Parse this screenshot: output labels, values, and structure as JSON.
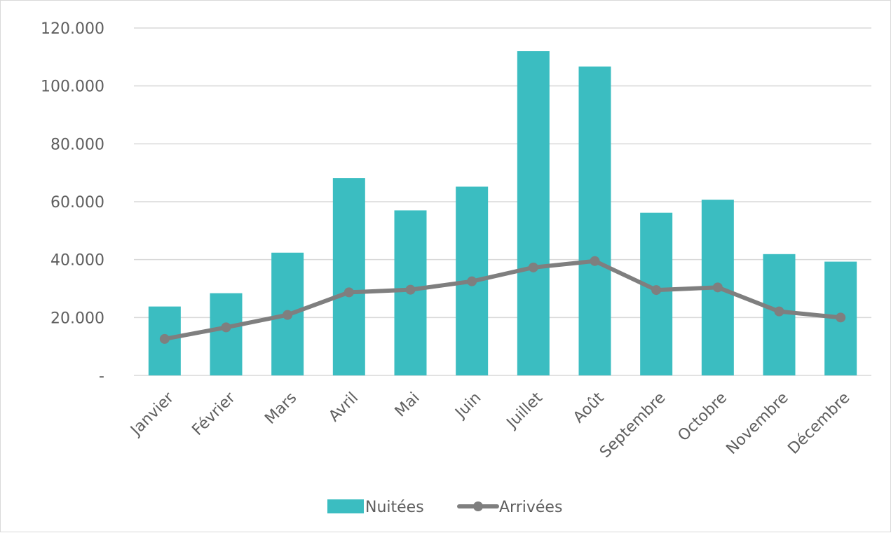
{
  "chart_data": {
    "type": "bar",
    "categories": [
      "Janvier",
      "Février",
      "Mars",
      "Avril",
      "Mai",
      "Juin",
      "Juillet",
      "Août",
      "Septembre",
      "Octobre",
      "Novembre",
      "Décembre"
    ],
    "series": [
      {
        "name": "Nuitées",
        "type": "bar",
        "color": "#3bbdc1",
        "values": [
          23800,
          28400,
          42400,
          68200,
          57000,
          65200,
          112000,
          106700,
          56200,
          60700,
          41900,
          39300
        ]
      },
      {
        "name": "Arrivées",
        "type": "line",
        "color": "#7f7f7f",
        "values": [
          12600,
          16600,
          20900,
          28700,
          29600,
          32500,
          37300,
          39500,
          29500,
          30400,
          22100,
          20000
        ]
      }
    ],
    "ylim": [
      0,
      120000
    ],
    "yticks": [
      0,
      20000,
      40000,
      60000,
      80000,
      100000,
      120000
    ],
    "ytick_labels": [
      "-",
      "20.000",
      "40.000",
      "60.000",
      "80.000",
      "100.000",
      "120.000"
    ],
    "grid": true,
    "legend_position": "bottom",
    "title": "",
    "xlabel": "",
    "ylabel": ""
  }
}
